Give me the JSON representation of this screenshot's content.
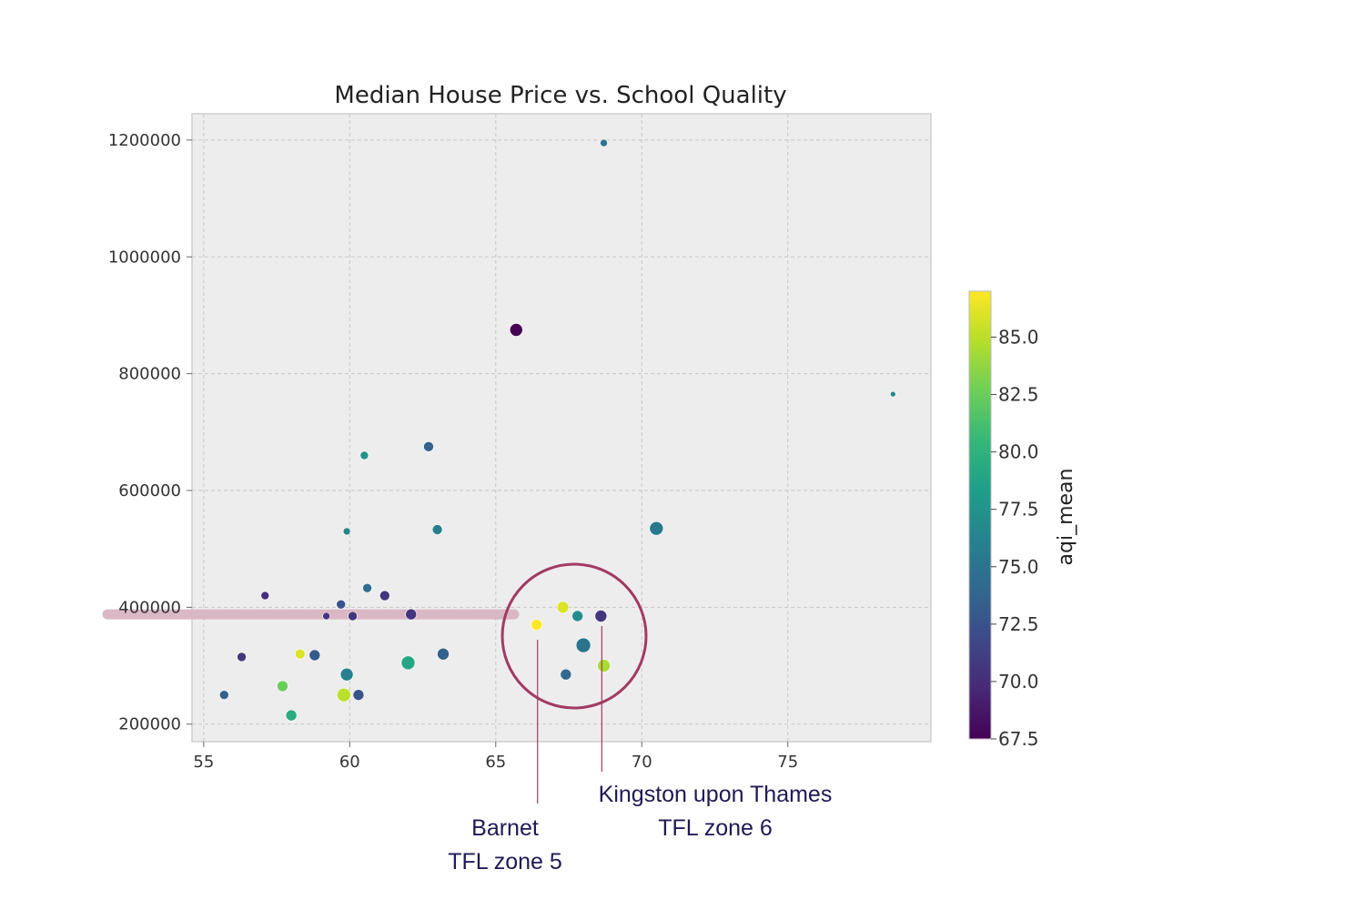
{
  "chart_data": {
    "type": "scatter",
    "title": "Median House Price vs. School Quality",
    "xlabel": "",
    "ylabel": "",
    "xlim": [
      54.6,
      79.9
    ],
    "ylim": [
      170000,
      1245000
    ],
    "xticks": [
      55,
      60,
      65,
      70,
      75
    ],
    "yticks": [
      200000,
      400000,
      600000,
      800000,
      1000000,
      1200000
    ],
    "grid": true,
    "colorbar": {
      "label": "aqi_mean",
      "min": 67.5,
      "max": 87,
      "ticks": [
        "67.5",
        "70.0",
        "72.5",
        "75.0",
        "77.5",
        "80.0",
        "82.5",
        "85.0"
      ],
      "colormap": [
        "#440154",
        "#482878",
        "#3e4989",
        "#31688e",
        "#26828e",
        "#1f9e89",
        "#35b779",
        "#6ece58",
        "#b5de2b",
        "#fde725"
      ]
    },
    "points": [
      {
        "x": 55.7,
        "y": 250000,
        "aqi": 73.5,
        "size": 5
      },
      {
        "x": 56.3,
        "y": 315000,
        "aqi": 70.5,
        "size": 5
      },
      {
        "x": 57.1,
        "y": 420000,
        "aqi": 70.0,
        "size": 4.5
      },
      {
        "x": 57.7,
        "y": 265000,
        "aqi": 82.5,
        "size": 6
      },
      {
        "x": 58.0,
        "y": 215000,
        "aqi": 79.5,
        "size": 6
      },
      {
        "x": 58.3,
        "y": 320000,
        "aqi": 86.0,
        "size": 5.5
      },
      {
        "x": 58.8,
        "y": 318000,
        "aqi": 73.0,
        "size": 6
      },
      {
        "x": 59.2,
        "y": 385000,
        "aqi": 70.5,
        "size": 4
      },
      {
        "x": 59.7,
        "y": 405000,
        "aqi": 72.5,
        "size": 5
      },
      {
        "x": 59.8,
        "y": 250000,
        "aqi": 85.0,
        "size": 7.5
      },
      {
        "x": 59.9,
        "y": 285000,
        "aqi": 76.0,
        "size": 7
      },
      {
        "x": 59.9,
        "y": 530000,
        "aqi": 76.5,
        "size": 4
      },
      {
        "x": 60.1,
        "y": 385000,
        "aqi": 70.5,
        "size": 5
      },
      {
        "x": 60.3,
        "y": 250000,
        "aqi": 72.5,
        "size": 6
      },
      {
        "x": 60.5,
        "y": 660000,
        "aqi": 77.5,
        "size": 4.5
      },
      {
        "x": 60.6,
        "y": 433000,
        "aqi": 74.5,
        "size": 5
      },
      {
        "x": 61.2,
        "y": 420000,
        "aqi": 70.5,
        "size": 5.5
      },
      {
        "x": 62.0,
        "y": 305000,
        "aqi": 79.0,
        "size": 7.5
      },
      {
        "x": 62.1,
        "y": 388000,
        "aqi": 70.5,
        "size": 6
      },
      {
        "x": 62.7,
        "y": 675000,
        "aqi": 73.5,
        "size": 5.5
      },
      {
        "x": 63.0,
        "y": 533000,
        "aqi": 76.0,
        "size": 5.5
      },
      {
        "x": 63.2,
        "y": 320000,
        "aqi": 73.5,
        "size": 6.5
      },
      {
        "x": 65.7,
        "y": 875000,
        "aqi": 67.5,
        "size": 7
      },
      {
        "x": 66.4,
        "y": 370000,
        "aqi": 87.0,
        "size": 6
      },
      {
        "x": 67.3,
        "y": 400000,
        "aqi": 86.0,
        "size": 6.5
      },
      {
        "x": 67.4,
        "y": 285000,
        "aqi": 74.0,
        "size": 6
      },
      {
        "x": 67.8,
        "y": 385000,
        "aqi": 77.0,
        "size": 6
      },
      {
        "x": 68.0,
        "y": 335000,
        "aqi": 75.0,
        "size": 8
      },
      {
        "x": 68.6,
        "y": 385000,
        "aqi": 70.5,
        "size": 6.5
      },
      {
        "x": 68.7,
        "y": 300000,
        "aqi": 84.5,
        "size": 7
      },
      {
        "x": 68.7,
        "y": 1195000,
        "aqi": 75.0,
        "size": 4
      },
      {
        "x": 70.5,
        "y": 535000,
        "aqi": 75.5,
        "size": 7.5
      },
      {
        "x": 78.6,
        "y": 765000,
        "aqi": 76.5,
        "size": 3
      }
    ],
    "highlight_line_y": 388000,
    "annotations": [
      {
        "lines": [
          "Barnet",
          "TFL zone 5"
        ],
        "point_x": 66.4,
        "point_y": 370000
      },
      {
        "lines": [
          "Kingston upon Thames",
          "TFL zone 6"
        ],
        "point_x": 68.6,
        "point_y": 385000
      }
    ]
  },
  "colors": {
    "plot_bg": "#ededed",
    "grid": "#c8c8c8",
    "highlight": "#d9b5c2",
    "circle": "#a23a63",
    "annot_line": "#a23a63"
  }
}
